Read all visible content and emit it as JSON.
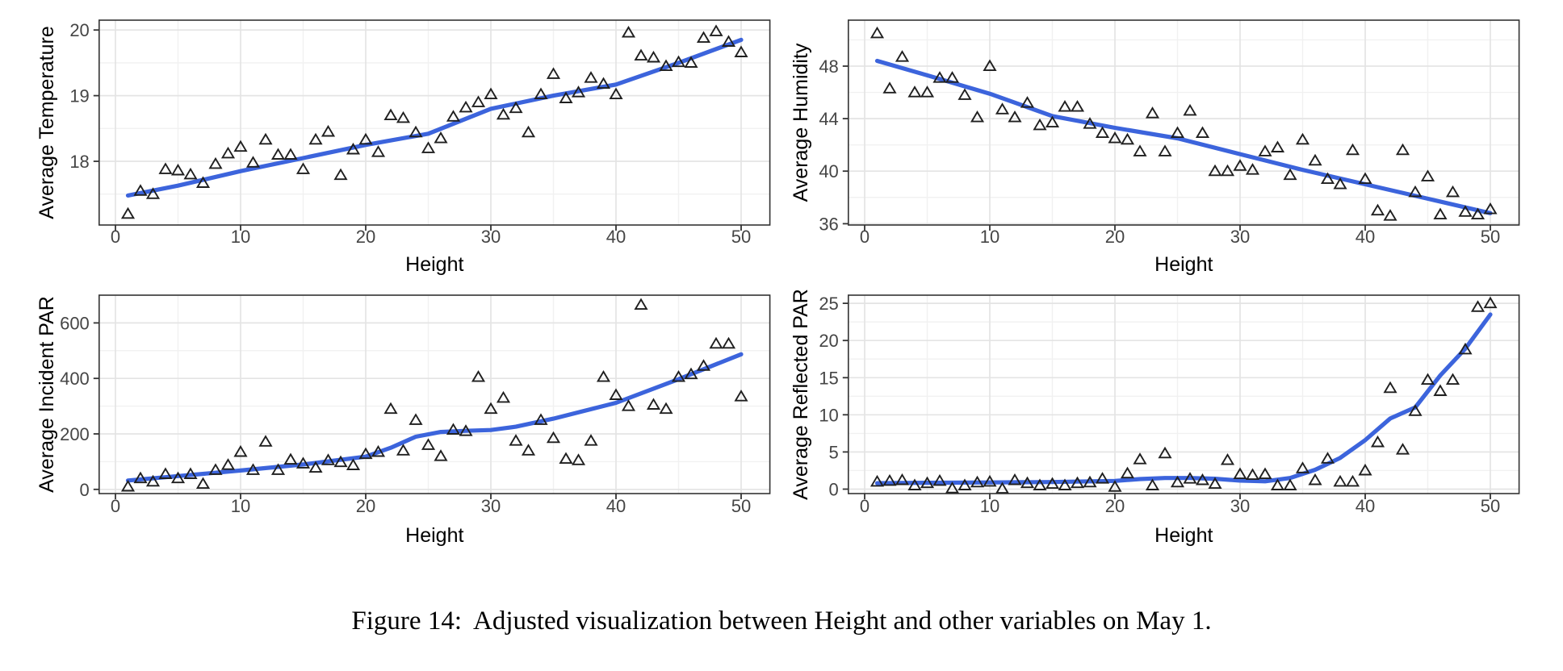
{
  "caption": {
    "label": "Figure 14:",
    "text": "Adjusted visualization between Height and other variables on May 1."
  },
  "style": {
    "smooth_line_color": "#3C64DC",
    "marker_color": "#1f1f1f",
    "grid_major_color": "#e4e4e4",
    "grid_minor_color": "#f1f1f1",
    "panel_border_color": "#333333",
    "tick_color": "#333333",
    "tick_label_color": "#454545",
    "axis_title_color": "#000000",
    "panel_background": "#ffffff"
  },
  "chart_data": [
    {
      "id": "average-temperature",
      "type": "scatter",
      "title": "",
      "xlabel": "Height",
      "ylabel": "Average Temperature",
      "marker": "open-triangle",
      "legend": "none",
      "grid": "on",
      "xlim": [
        -1.3,
        52.3
      ],
      "ylim": [
        17.03,
        20.15
      ],
      "xticks": [
        0,
        10,
        20,
        30,
        40,
        50
      ],
      "xticks_minor": [
        5,
        15,
        25,
        35,
        45
      ],
      "yticks": [
        18,
        19,
        20
      ],
      "yticks_minor": [
        17.5,
        18.5,
        19.5
      ],
      "points": [
        [
          1,
          17.2
        ],
        [
          2,
          17.55
        ],
        [
          3,
          17.5
        ],
        [
          4,
          17.88
        ],
        [
          5,
          17.86
        ],
        [
          6,
          17.8
        ],
        [
          7,
          17.67
        ],
        [
          8,
          17.96
        ],
        [
          9,
          18.12
        ],
        [
          10,
          18.22
        ],
        [
          11,
          17.98
        ],
        [
          12,
          18.33
        ],
        [
          13,
          18.1
        ],
        [
          14,
          18.1
        ],
        [
          15,
          17.88
        ],
        [
          16,
          18.33
        ],
        [
          17,
          18.45
        ],
        [
          18,
          17.79
        ],
        [
          19,
          18.18
        ],
        [
          20,
          18.33
        ],
        [
          21,
          18.14
        ],
        [
          22,
          18.7
        ],
        [
          23,
          18.66
        ],
        [
          24,
          18.44
        ],
        [
          25,
          18.2
        ],
        [
          26,
          18.35
        ],
        [
          27,
          18.68
        ],
        [
          28,
          18.82
        ],
        [
          29,
          18.9
        ],
        [
          30,
          19.02
        ],
        [
          31,
          18.71
        ],
        [
          32,
          18.81
        ],
        [
          33,
          18.44
        ],
        [
          34,
          19.02
        ],
        [
          35,
          19.33
        ],
        [
          36,
          18.96
        ],
        [
          37,
          19.05
        ],
        [
          38,
          19.27
        ],
        [
          39,
          19.18
        ],
        [
          40,
          19.02
        ],
        [
          41,
          19.96
        ],
        [
          42,
          19.61
        ],
        [
          43,
          19.58
        ],
        [
          44,
          19.45
        ],
        [
          45,
          19.51
        ],
        [
          46,
          19.5
        ],
        [
          47,
          19.88
        ],
        [
          48,
          19.98
        ],
        [
          49,
          19.82
        ],
        [
          50,
          19.66
        ]
      ],
      "smooth_line": [
        [
          1,
          17.48
        ],
        [
          5,
          17.63
        ],
        [
          10,
          17.85
        ],
        [
          15,
          18.05
        ],
        [
          20,
          18.25
        ],
        [
          25,
          18.42
        ],
        [
          30,
          18.8
        ],
        [
          35,
          19.0
        ],
        [
          40,
          19.17
        ],
        [
          45,
          19.5
        ],
        [
          50,
          19.85
        ]
      ]
    },
    {
      "id": "average-humidity",
      "type": "scatter",
      "title": "",
      "xlabel": "Height",
      "ylabel": "Average Humidity",
      "marker": "open-triangle",
      "legend": "none",
      "grid": "on",
      "xlim": [
        -1.3,
        52.3
      ],
      "ylim": [
        35.9,
        51.5
      ],
      "xticks": [
        0,
        10,
        20,
        30,
        40,
        50
      ],
      "xticks_minor": [
        5,
        15,
        25,
        35,
        45
      ],
      "yticks": [
        36,
        40,
        44,
        48
      ],
      "yticks_minor": [
        38,
        42,
        46,
        50
      ],
      "points": [
        [
          1,
          50.5
        ],
        [
          2,
          46.3
        ],
        [
          3,
          48.7
        ],
        [
          4,
          46.0
        ],
        [
          5,
          46.0
        ],
        [
          6,
          47.1
        ],
        [
          7,
          47.1
        ],
        [
          8,
          45.8
        ],
        [
          9,
          44.1
        ],
        [
          10,
          48.0
        ],
        [
          11,
          44.7
        ],
        [
          12,
          44.1
        ],
        [
          13,
          45.2
        ],
        [
          14,
          43.5
        ],
        [
          15,
          43.7
        ],
        [
          16,
          44.9
        ],
        [
          17,
          44.9
        ],
        [
          18,
          43.6
        ],
        [
          19,
          42.9
        ],
        [
          20,
          42.5
        ],
        [
          21,
          42.4
        ],
        [
          22,
          41.5
        ],
        [
          23,
          44.4
        ],
        [
          24,
          41.5
        ],
        [
          25,
          42.9
        ],
        [
          26,
          44.6
        ],
        [
          27,
          42.9
        ],
        [
          28,
          40.0
        ],
        [
          29,
          40.0
        ],
        [
          30,
          40.4
        ],
        [
          31,
          40.1
        ],
        [
          32,
          41.5
        ],
        [
          33,
          41.8
        ],
        [
          34,
          39.7
        ],
        [
          35,
          42.4
        ],
        [
          36,
          40.8
        ],
        [
          37,
          39.4
        ],
        [
          38,
          39.0
        ],
        [
          39,
          41.6
        ],
        [
          40,
          39.4
        ],
        [
          41,
          37.0
        ],
        [
          42,
          36.6
        ],
        [
          43,
          41.6
        ],
        [
          44,
          38.4
        ],
        [
          45,
          39.6
        ],
        [
          46,
          36.7
        ],
        [
          47,
          38.4
        ],
        [
          48,
          36.9
        ],
        [
          49,
          36.7
        ],
        [
          50,
          37.1
        ]
      ],
      "smooth_line": [
        [
          1,
          48.4
        ],
        [
          5,
          47.3
        ],
        [
          10,
          45.9
        ],
        [
          15,
          44.2
        ],
        [
          20,
          43.3
        ],
        [
          25,
          42.5
        ],
        [
          30,
          41.3
        ],
        [
          35,
          40.1
        ],
        [
          40,
          39.0
        ],
        [
          45,
          37.9
        ],
        [
          50,
          36.8
        ]
      ]
    },
    {
      "id": "average-incident-par",
      "type": "scatter",
      "title": "",
      "xlabel": "Height",
      "ylabel": "Average Incident PAR",
      "marker": "open-triangle",
      "legend": "none",
      "grid": "on",
      "xlim": [
        -1.3,
        52.3
      ],
      "ylim": [
        -15,
        700
      ],
      "xticks": [
        0,
        10,
        20,
        30,
        40,
        50
      ],
      "xticks_minor": [
        5,
        15,
        25,
        35,
        45
      ],
      "yticks": [
        0,
        200,
        400,
        600
      ],
      "yticks_minor": [
        100,
        300,
        500,
        700
      ],
      "points": [
        [
          1,
          10
        ],
        [
          2,
          40
        ],
        [
          3,
          28
        ],
        [
          4,
          55
        ],
        [
          5,
          40
        ],
        [
          6,
          55
        ],
        [
          7,
          20
        ],
        [
          8,
          70
        ],
        [
          9,
          88
        ],
        [
          10,
          135
        ],
        [
          11,
          70
        ],
        [
          12,
          172
        ],
        [
          13,
          70
        ],
        [
          14,
          107
        ],
        [
          15,
          93
        ],
        [
          16,
          78
        ],
        [
          17,
          105
        ],
        [
          18,
          98
        ],
        [
          19,
          87
        ],
        [
          20,
          127
        ],
        [
          21,
          135
        ],
        [
          22,
          290
        ],
        [
          23,
          140
        ],
        [
          24,
          250
        ],
        [
          25,
          160
        ],
        [
          26,
          120
        ],
        [
          27,
          215
        ],
        [
          28,
          210
        ],
        [
          29,
          405
        ],
        [
          30,
          290
        ],
        [
          31,
          330
        ],
        [
          32,
          175
        ],
        [
          33,
          140
        ],
        [
          34,
          250
        ],
        [
          35,
          185
        ],
        [
          36,
          110
        ],
        [
          37,
          105
        ],
        [
          38,
          175
        ],
        [
          39,
          405
        ],
        [
          40,
          340
        ],
        [
          41,
          300
        ],
        [
          42,
          665
        ],
        [
          43,
          305
        ],
        [
          44,
          290
        ],
        [
          45,
          405
        ],
        [
          46,
          415
        ],
        [
          47,
          445
        ],
        [
          48,
          525
        ],
        [
          49,
          525
        ],
        [
          50,
          335
        ]
      ],
      "smooth_line": [
        [
          1,
          32
        ],
        [
          5,
          48
        ],
        [
          10,
          68
        ],
        [
          15,
          90
        ],
        [
          20,
          118
        ],
        [
          22,
          150
        ],
        [
          24,
          190
        ],
        [
          26,
          207
        ],
        [
          28,
          211
        ],
        [
          30,
          214
        ],
        [
          32,
          226
        ],
        [
          35,
          255
        ],
        [
          40,
          312
        ],
        [
          45,
          397
        ],
        [
          50,
          487
        ]
      ]
    },
    {
      "id": "average-reflected-par",
      "type": "scatter",
      "title": "",
      "xlabel": "Height",
      "ylabel": "Average Reflected PAR",
      "marker": "open-triangle",
      "legend": "none",
      "grid": "on",
      "xlim": [
        -1.3,
        52.3
      ],
      "ylim": [
        -0.6,
        26.1
      ],
      "xticks": [
        0,
        10,
        20,
        30,
        40,
        50
      ],
      "xticks_minor": [
        5,
        15,
        25,
        35,
        45
      ],
      "yticks": [
        0,
        5,
        10,
        15,
        20,
        25
      ],
      "yticks_minor": [
        2.5,
        7.5,
        12.5,
        17.5,
        22.5
      ],
      "points": [
        [
          1,
          1.0
        ],
        [
          2,
          1.1
        ],
        [
          3,
          1.2
        ],
        [
          4,
          0.5
        ],
        [
          5,
          0.8
        ],
        [
          6,
          1.1
        ],
        [
          7,
          0.1
        ],
        [
          8,
          0.5
        ],
        [
          9,
          0.9
        ],
        [
          10,
          1.0
        ],
        [
          11,
          0.05
        ],
        [
          12,
          1.2
        ],
        [
          13,
          0.8
        ],
        [
          14,
          0.5
        ],
        [
          15,
          0.7
        ],
        [
          16,
          0.5
        ],
        [
          17,
          0.8
        ],
        [
          18,
          0.9
        ],
        [
          19,
          1.4
        ],
        [
          20,
          0.3
        ],
        [
          21,
          2.1
        ],
        [
          22,
          4.0
        ],
        [
          23,
          0.5
        ],
        [
          24,
          4.8
        ],
        [
          25,
          0.9
        ],
        [
          26,
          1.4
        ],
        [
          27,
          1.2
        ],
        [
          28,
          0.7
        ],
        [
          29,
          3.9
        ],
        [
          30,
          2.0
        ],
        [
          31,
          1.9
        ],
        [
          32,
          2.0
        ],
        [
          33,
          0.5
        ],
        [
          34,
          0.5
        ],
        [
          35,
          2.8
        ],
        [
          36,
          1.2
        ],
        [
          37,
          4.1
        ],
        [
          38,
          1.0
        ],
        [
          39,
          1.0
        ],
        [
          40,
          2.5
        ],
        [
          41,
          6.3
        ],
        [
          42,
          13.6
        ],
        [
          43,
          5.3
        ],
        [
          44,
          10.5
        ],
        [
          45,
          14.7
        ],
        [
          46,
          13.2
        ],
        [
          47,
          14.7
        ],
        [
          48,
          18.8
        ],
        [
          49,
          24.5
        ],
        [
          50,
          25.0
        ]
      ],
      "smooth_line": [
        [
          1,
          0.8
        ],
        [
          5,
          0.85
        ],
        [
          10,
          0.9
        ],
        [
          15,
          0.95
        ],
        [
          20,
          1.1
        ],
        [
          22,
          1.35
        ],
        [
          24,
          1.5
        ],
        [
          26,
          1.5
        ],
        [
          28,
          1.4
        ],
        [
          30,
          1.15
        ],
        [
          32,
          1.05
        ],
        [
          34,
          1.5
        ],
        [
          36,
          2.6
        ],
        [
          38,
          4.2
        ],
        [
          40,
          6.6
        ],
        [
          42,
          9.5
        ],
        [
          44,
          11.0
        ],
        [
          46,
          15.3
        ],
        [
          48,
          18.9
        ],
        [
          50,
          23.5
        ]
      ]
    }
  ]
}
